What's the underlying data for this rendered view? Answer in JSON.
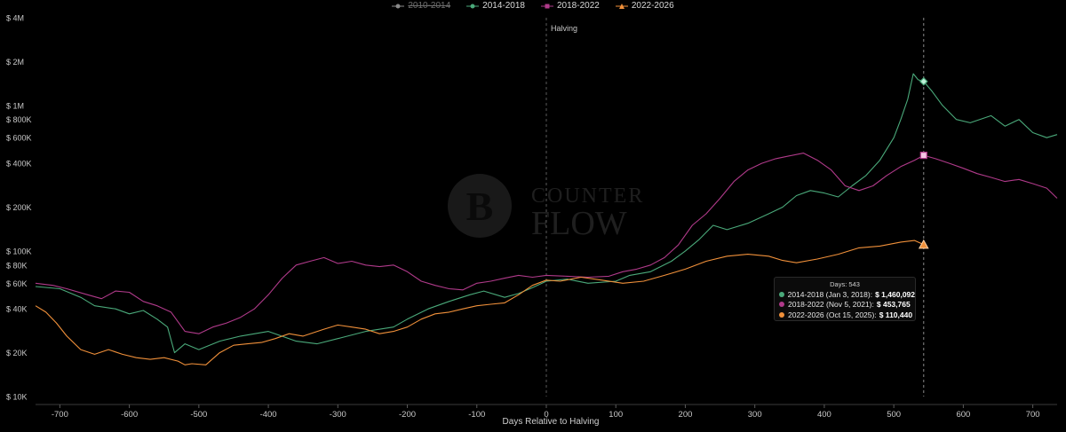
{
  "legend": [
    {
      "label": "2010-2014",
      "color": "#8a8a8a",
      "marker": "circle",
      "hidden": true
    },
    {
      "label": "2014-2018",
      "color": "#4aa97a",
      "marker": "circle",
      "hidden": false
    },
    {
      "label": "2018-2022",
      "color": "#b03a8a",
      "marker": "square",
      "hidden": false
    },
    {
      "label": "2022-2026",
      "color": "#f0903a",
      "marker": "triangle",
      "hidden": false
    }
  ],
  "watermark": {
    "line1": "COUNTER",
    "line2": "FLOW"
  },
  "tooltip": {
    "title": "Days: 543",
    "rows": [
      {
        "text": "2014-2018 (Jan 3, 2018):",
        "value": "$ 1,460,092",
        "color": "#4aa97a"
      },
      {
        "text": "2018-2022 (Nov 5, 2021):",
        "value": "$ 453,765",
        "color": "#b03a8a"
      },
      {
        "text": "2022-2026 (Oct 15, 2025):",
        "value": "$ 110,440",
        "color": "#f0903a"
      }
    ]
  },
  "chart_data": {
    "type": "line",
    "xlabel": "Days Relative to Halving",
    "ylabel": "",
    "x_ticks": [
      -700,
      -600,
      -500,
      -400,
      -300,
      -200,
      -100,
      0,
      100,
      200,
      300,
      400,
      500,
      600,
      700
    ],
    "xlim": [
      -735,
      735
    ],
    "y_scale": "log",
    "ylim": [
      10000,
      4000000
    ],
    "y_ticks": [
      {
        "value": 10000,
        "label": "$ 10K"
      },
      {
        "value": 20000,
        "label": "$ 20K"
      },
      {
        "value": 40000,
        "label": "$ 40K"
      },
      {
        "value": 60000,
        "label": "$ 60K"
      },
      {
        "value": 80000,
        "label": "$ 80K"
      },
      {
        "value": 100000,
        "label": "$ 100K"
      },
      {
        "value": 200000,
        "label": "$ 200K"
      },
      {
        "value": 400000,
        "label": "$ 400K"
      },
      {
        "value": 600000,
        "label": "$ 600K"
      },
      {
        "value": 800000,
        "label": "$ 800K"
      },
      {
        "value": 1000000,
        "label": "$ 1M"
      },
      {
        "value": 2000000,
        "label": "$ 2M"
      },
      {
        "value": 4000000,
        "label": "$ 4M"
      }
    ],
    "annotations": [
      {
        "x": 0,
        "label": "Halving"
      },
      {
        "x": 543,
        "label": ""
      }
    ],
    "grid": false,
    "legend_position": "top-center",
    "series": [
      {
        "name": "2014-2018",
        "color": "#4aa97a",
        "x": [
          -735,
          -700,
          -670,
          -650,
          -620,
          -600,
          -580,
          -560,
          -545,
          -535,
          -520,
          -500,
          -470,
          -440,
          -400,
          -360,
          -330,
          -300,
          -260,
          -220,
          -200,
          -170,
          -140,
          -110,
          -90,
          -60,
          -40,
          -20,
          0,
          30,
          60,
          100,
          120,
          150,
          180,
          200,
          220,
          240,
          260,
          290,
          320,
          340,
          360,
          380,
          400,
          420,
          440,
          460,
          480,
          500,
          510,
          520,
          528,
          535,
          543,
          555,
          570,
          590,
          610,
          640,
          660,
          680,
          700,
          720,
          735
        ],
        "y": [
          57000,
          55000,
          48000,
          42000,
          40000,
          37000,
          39000,
          34000,
          30000,
          20000,
          23000,
          21000,
          24000,
          26000,
          28000,
          24000,
          23000,
          25000,
          28000,
          30000,
          34000,
          40000,
          45000,
          50000,
          53000,
          48000,
          51000,
          56000,
          62000,
          64000,
          60000,
          62000,
          68000,
          72000,
          85000,
          100000,
          120000,
          150000,
          140000,
          155000,
          180000,
          200000,
          240000,
          260000,
          250000,
          235000,
          280000,
          330000,
          420000,
          600000,
          800000,
          1100000,
          1650000,
          1500000,
          1460092,
          1250000,
          1000000,
          800000,
          760000,
          850000,
          720000,
          800000,
          650000,
          600000,
          630000
        ]
      },
      {
        "name": "2018-2022",
        "color": "#b03a8a",
        "x": [
          -735,
          -710,
          -690,
          -660,
          -640,
          -620,
          -600,
          -580,
          -560,
          -540,
          -520,
          -500,
          -480,
          -460,
          -440,
          -420,
          -400,
          -380,
          -360,
          -340,
          -320,
          -300,
          -280,
          -260,
          -240,
          -220,
          -200,
          -180,
          -160,
          -140,
          -120,
          -100,
          -80,
          -60,
          -40,
          -20,
          0,
          30,
          60,
          90,
          110,
          130,
          150,
          170,
          190,
          210,
          230,
          250,
          270,
          290,
          310,
          330,
          350,
          370,
          390,
          410,
          430,
          450,
          470,
          490,
          510,
          530,
          543,
          560,
          580,
          600,
          620,
          640,
          660,
          680,
          700,
          720,
          735
        ],
        "y": [
          60000,
          58000,
          55000,
          50000,
          47000,
          53000,
          52000,
          45000,
          42000,
          38000,
          28000,
          27000,
          30000,
          32000,
          35000,
          40000,
          50000,
          65000,
          80000,
          85000,
          90000,
          82000,
          85000,
          80000,
          78000,
          80000,
          72000,
          62000,
          58000,
          55000,
          54000,
          60000,
          62000,
          65000,
          68000,
          66000,
          68000,
          67000,
          66000,
          67000,
          72000,
          75000,
          80000,
          90000,
          110000,
          150000,
          180000,
          230000,
          300000,
          360000,
          400000,
          430000,
          450000,
          470000,
          420000,
          360000,
          280000,
          260000,
          280000,
          330000,
          380000,
          420000,
          453765,
          430000,
          400000,
          370000,
          340000,
          320000,
          300000,
          310000,
          290000,
          270000,
          230000
        ]
      },
      {
        "name": "2022-2026",
        "color": "#f0903a",
        "x": [
          -735,
          -720,
          -705,
          -690,
          -670,
          -650,
          -630,
          -610,
          -590,
          -570,
          -550,
          -530,
          -520,
          -510,
          -490,
          -470,
          -450,
          -430,
          -410,
          -390,
          -370,
          -350,
          -320,
          -300,
          -280,
          -260,
          -240,
          -220,
          -200,
          -180,
          -160,
          -140,
          -120,
          -100,
          -80,
          -60,
          -40,
          -20,
          0,
          20,
          50,
          80,
          110,
          140,
          170,
          200,
          230,
          260,
          290,
          320,
          340,
          360,
          390,
          420,
          450,
          480,
          510,
          530,
          543
        ],
        "y": [
          42000,
          38000,
          32000,
          26000,
          21000,
          19500,
          21000,
          19500,
          18500,
          18000,
          18500,
          17500,
          16500,
          16800,
          16500,
          20000,
          22500,
          23000,
          23500,
          25000,
          27000,
          26000,
          29000,
          31000,
          30000,
          29000,
          27000,
          28000,
          30000,
          34000,
          37000,
          38000,
          40000,
          42000,
          43000,
          44000,
          50000,
          58000,
          63000,
          62000,
          66000,
          63000,
          60000,
          62000,
          68000,
          75000,
          85000,
          92000,
          95000,
          92000,
          86000,
          83000,
          88000,
          95000,
          105000,
          108000,
          115000,
          118000,
          110440
        ]
      }
    ]
  }
}
